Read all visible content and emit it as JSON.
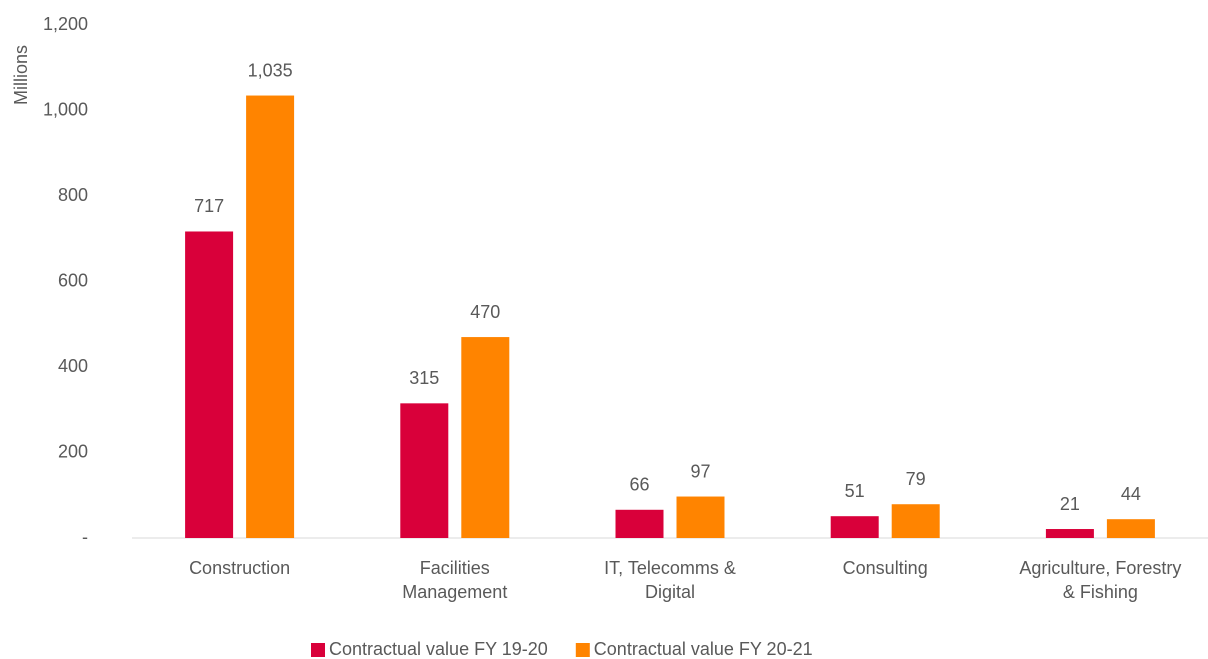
{
  "chart_data": {
    "type": "bar",
    "y_label": "Millions",
    "categories": [
      "Construction",
      "Facilities\nManagement",
      "IT, Telecomms &\nDigital",
      "Consulting",
      "Agriculture, Forestry\n& Fishing"
    ],
    "series": [
      {
        "name": "Contractual value FY 19-20",
        "color": "#d9003a",
        "values": [
          717,
          315,
          66,
          51,
          21
        ]
      },
      {
        "name": "Contractual value FY 20-21",
        "color": "#ff8400",
        "values": [
          1035,
          470,
          97,
          79,
          44
        ],
        "value_labels": [
          "1,035",
          "470",
          "97",
          "79",
          "44"
        ]
      }
    ],
    "ylim": [
      0,
      1200
    ],
    "yticks": [
      {
        "value": 0,
        "label": "-"
      },
      200,
      400,
      600,
      800,
      {
        "value": 1000,
        "label": "1,000"
      },
      {
        "value": 1200,
        "label": "1,200"
      }
    ],
    "legend": "bottom"
  }
}
